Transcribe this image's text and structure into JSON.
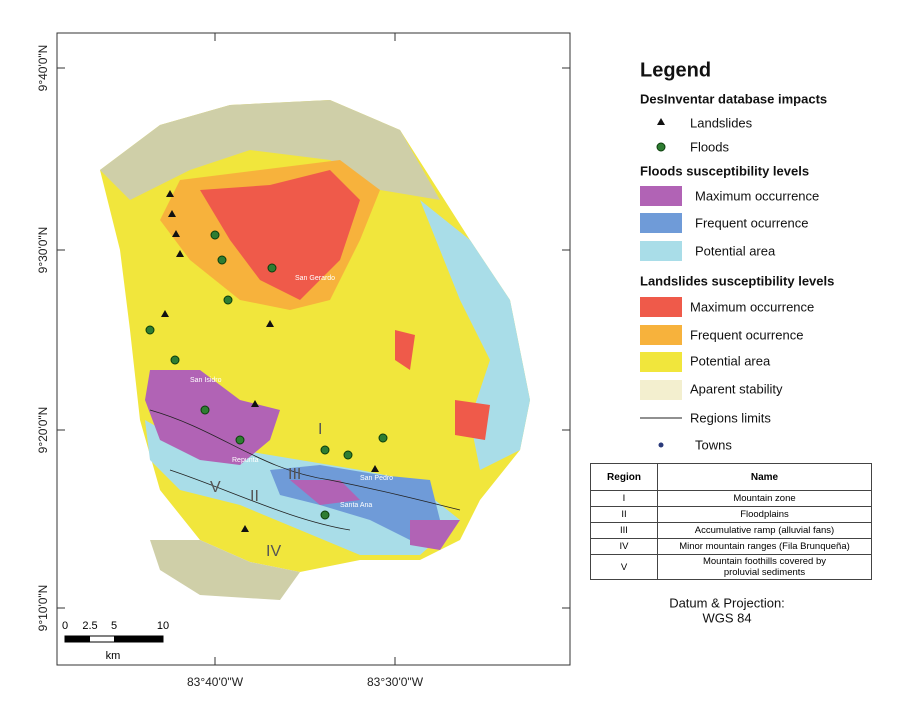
{
  "map": {
    "latitude_labels": [
      "9°40'0\"N",
      "9°30'0\"N",
      "9°20'0\"N",
      "9°10'0\"N"
    ],
    "longitude_labels": [
      "83°40'0\"W",
      "83°30'0\"W"
    ],
    "scale_bar": {
      "ticks": [
        "0",
        "2.5",
        "5",
        "10"
      ],
      "unit": "km"
    },
    "region_labels": [
      "I",
      "II",
      "III",
      "IV",
      "V"
    ],
    "town_labels": [
      "San Gerardo",
      "San Isidro",
      "Repunta",
      "Santa Ana",
      "San Pedro"
    ]
  },
  "legend": {
    "title": "Legend",
    "sections": [
      {
        "title": "DesInventar database impacts",
        "items": [
          "Landslides",
          "Floods"
        ]
      },
      {
        "title": "Floods susceptibility levels",
        "items": [
          "Maximum occurrence",
          "Frequent ocurrence",
          "Potential area"
        ]
      },
      {
        "title": "Landslides susceptibility levels",
        "items": [
          "Maximum occurrence",
          "Frequent ocurrence",
          "Potential area",
          "Aparent stability",
          "Regions limits",
          "Towns"
        ]
      }
    ]
  },
  "table": {
    "header": [
      "Region",
      "Name"
    ],
    "rows": [
      [
        "I",
        "Mountain zone"
      ],
      [
        "II",
        "Floodplains"
      ],
      [
        "III",
        "Accumulative ramp (alluvial fans)"
      ],
      [
        "IV",
        "Minor mountain ranges (Fila Brunqueña)"
      ],
      [
        "V",
        "Mountain foothills covered by proluvial sediments"
      ]
    ]
  },
  "datum": [
    "Datum & Projection:",
    "WGS 84"
  ]
}
